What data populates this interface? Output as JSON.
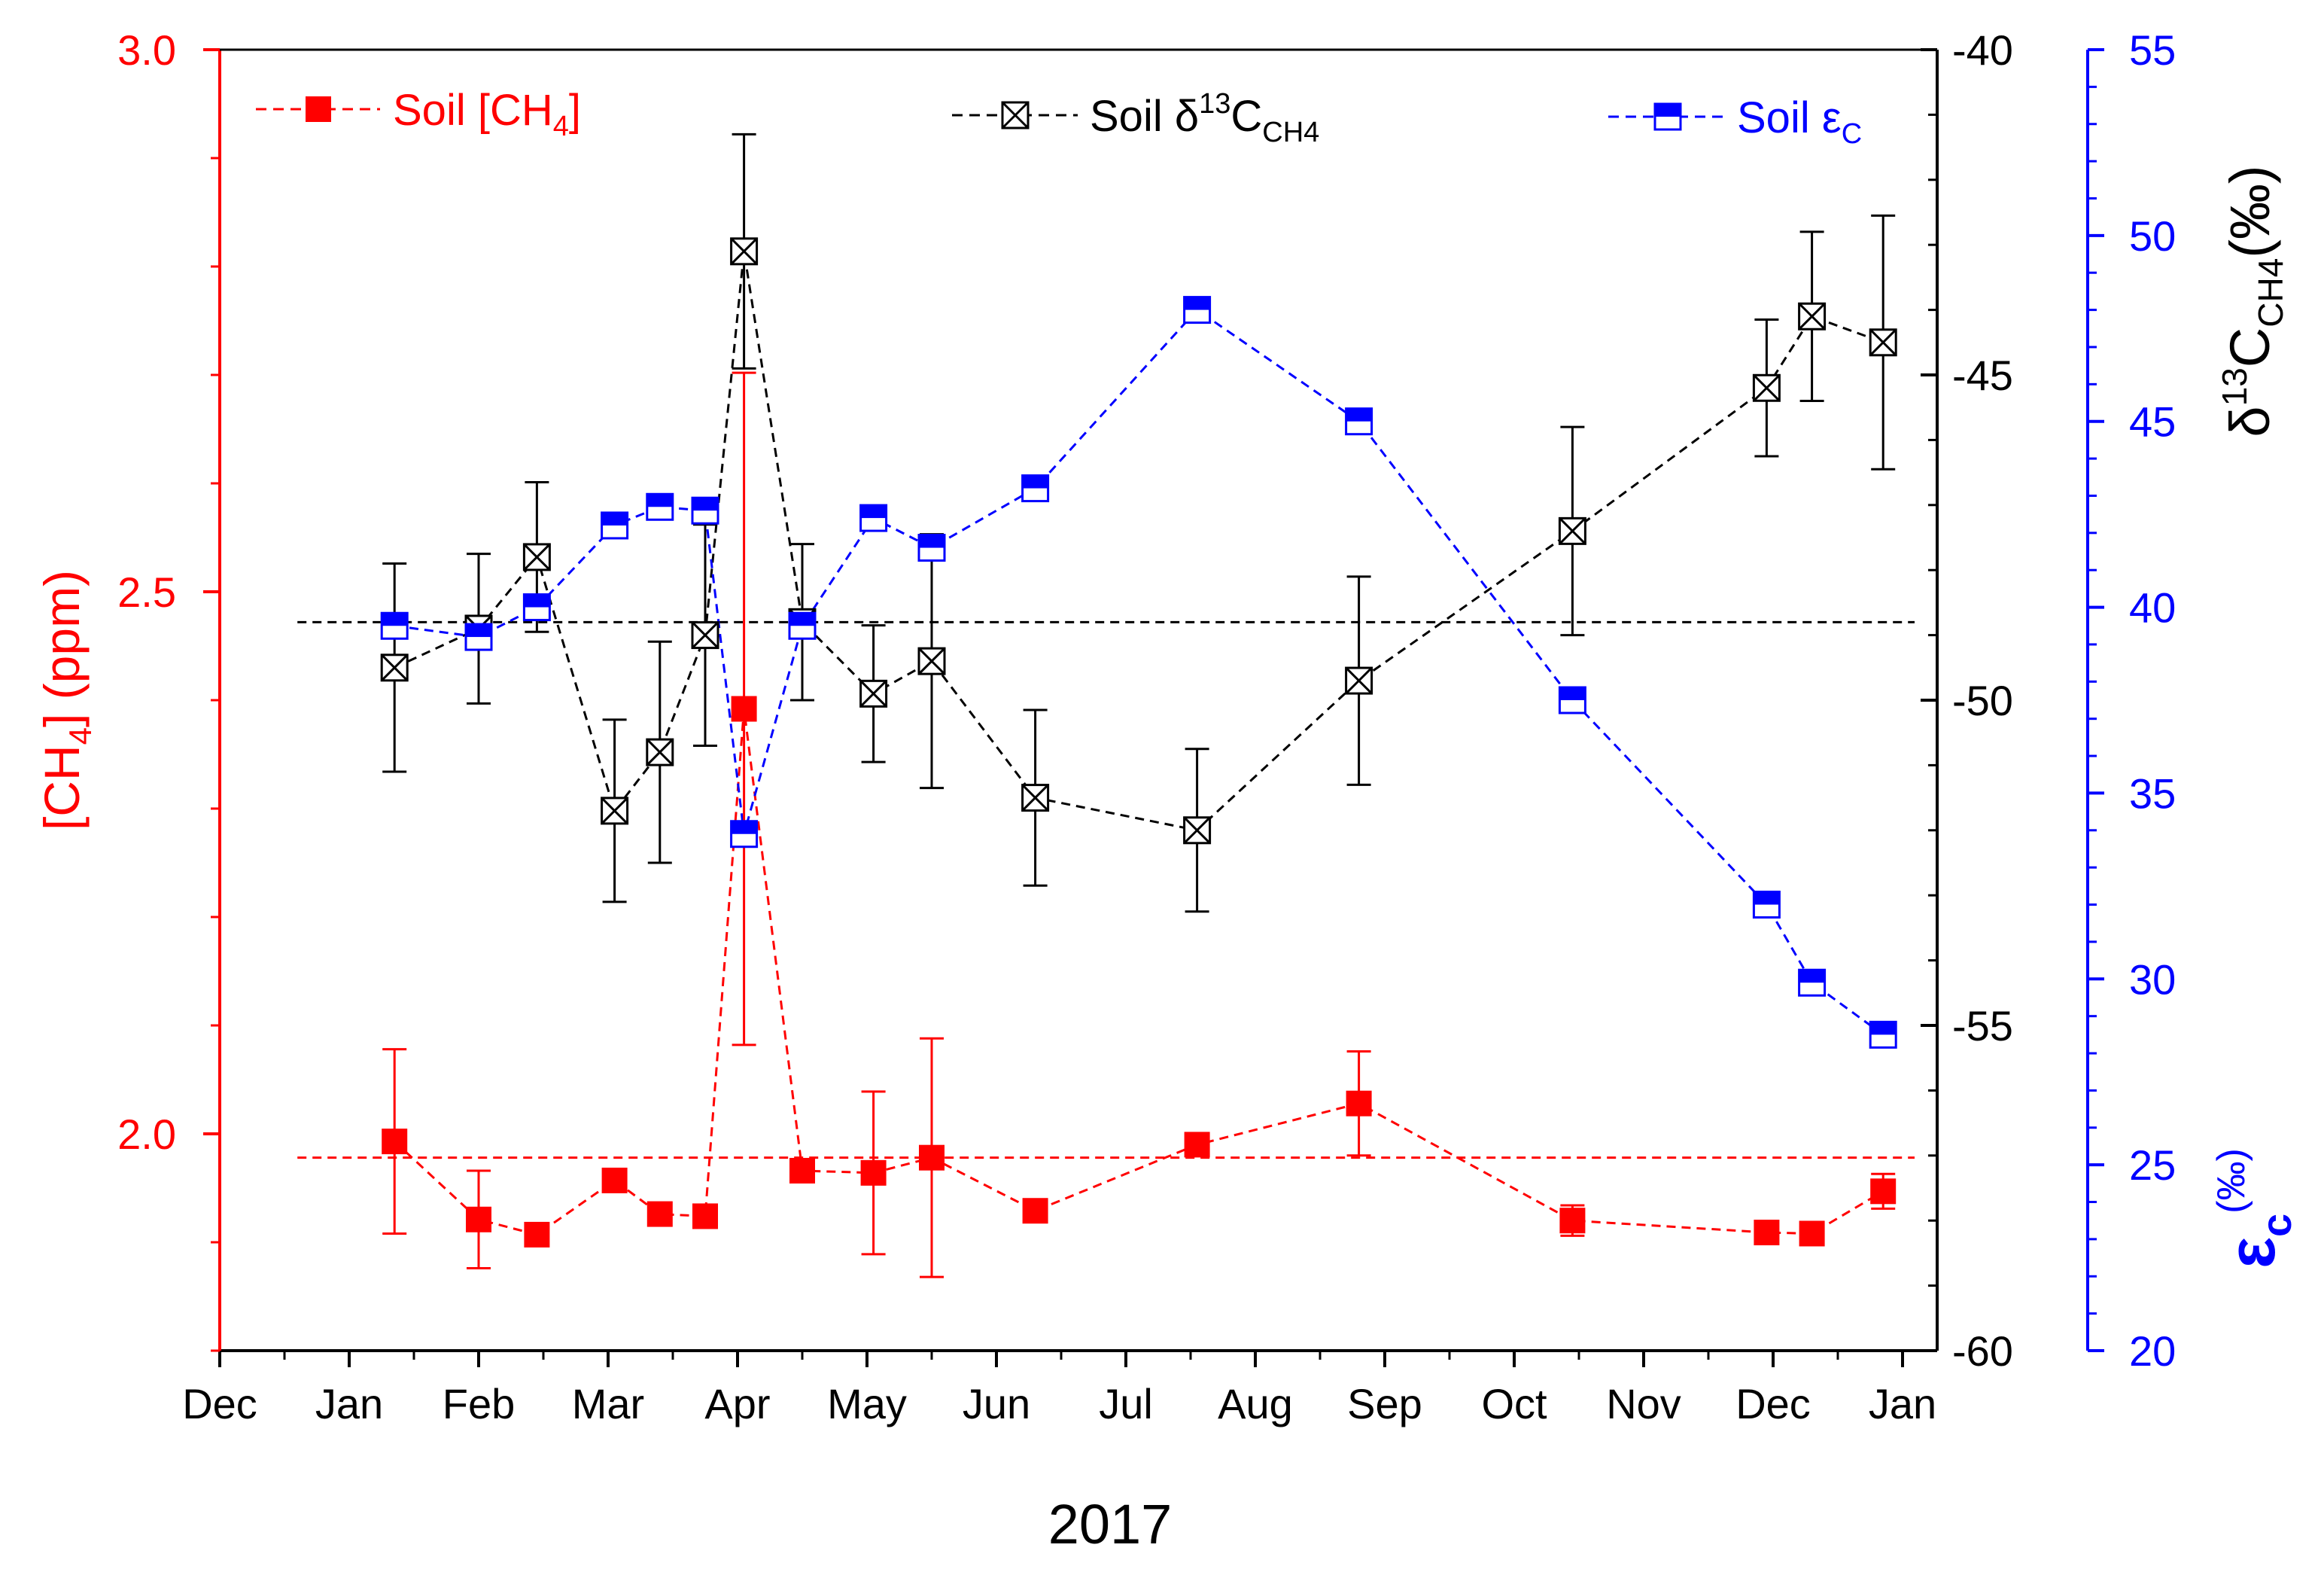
{
  "colors": {
    "ch4": "#ff0000",
    "d13c": "#000000",
    "eps": "#0000ff"
  },
  "chart_data": {
    "type": "scatter",
    "xlabel": "2017",
    "x_tick_labels": [
      "Dec",
      "Jan",
      "Feb",
      "Mar",
      "Apr",
      "May",
      "Jun",
      "Jul",
      "Aug",
      "Sep",
      "Oct",
      "Nov",
      "Dec",
      "Jan"
    ],
    "x_unit": "month index (0 = Dec 2016 tick)",
    "x_range": [
      0,
      13.5
    ],
    "axes": {
      "left": {
        "label": "[CH4] (ppm)",
        "label_main": "[CH",
        "label_sub": "4",
        "label_tail": "] (ppm)",
        "range": [
          1.8,
          3.0
        ],
        "ticks": [
          2.0,
          2.5,
          3.0
        ],
        "tick_labels": [
          "2.0",
          "2.5",
          "3.0"
        ]
      },
      "right1": {
        "label": "δ13CCH4(‰)",
        "label_main": "δ",
        "label_sup": "13",
        "label_mid": "C",
        "label_sub": "CH4",
        "label_tail": "(‰)",
        "range": [
          -60,
          -40
        ],
        "ticks": [
          -60,
          -55,
          -50,
          -45,
          -40
        ],
        "tick_labels": [
          "-60",
          "-55",
          "-50",
          "-45",
          "-40"
        ]
      },
      "right2": {
        "label": "εC(‰)",
        "label_main": "ε",
        "label_sub": "c",
        "label_sup": "(‰)",
        "range": [
          20,
          55
        ],
        "ticks": [
          20,
          25,
          30,
          35,
          40,
          45,
          50,
          55
        ],
        "tick_labels": [
          "20",
          "25",
          "30",
          "35",
          "40",
          "45",
          "50",
          "55"
        ]
      }
    },
    "legend": {
      "ch4": {
        "text": "Soil [CH",
        "sub": "4",
        "tail": "]"
      },
      "d13c": {
        "text": "Soil δ",
        "sup": "13",
        "mid": "C",
        "sub": "CH4"
      },
      "eps": {
        "text": "Soil ε",
        "sub": "C"
      }
    },
    "series": [
      {
        "name": "Soil [CH4]",
        "axis": "left",
        "marker": "filled-square",
        "reference_line": 1.978,
        "points": [
          {
            "x": 1.35,
            "y": 1.993,
            "err": 0.085
          },
          {
            "x": 2.0,
            "y": 1.921,
            "err": 0.045
          },
          {
            "x": 2.45,
            "y": 1.907,
            "err": 0
          },
          {
            "x": 3.05,
            "y": 1.957,
            "err": 0
          },
          {
            "x": 3.4,
            "y": 1.926,
            "err": 0
          },
          {
            "x": 3.75,
            "y": 1.924,
            "err": 0
          },
          {
            "x": 4.05,
            "y": 2.392,
            "err": 0.31
          },
          {
            "x": 4.5,
            "y": 1.966,
            "err": 0.01
          },
          {
            "x": 5.05,
            "y": 1.964,
            "err": 0.075
          },
          {
            "x": 5.5,
            "y": 1.978,
            "err": 0.11
          },
          {
            "x": 6.3,
            "y": 1.929,
            "err": 0
          },
          {
            "x": 7.55,
            "y": 1.99,
            "err": 0
          },
          {
            "x": 8.8,
            "y": 2.028,
            "err": 0.048
          },
          {
            "x": 10.45,
            "y": 1.92,
            "err": 0.014
          },
          {
            "x": 11.95,
            "y": 1.909,
            "err": 0
          },
          {
            "x": 12.3,
            "y": 1.908,
            "err": 0
          },
          {
            "x": 12.85,
            "y": 1.947,
            "err": 0.016
          }
        ]
      },
      {
        "name": "Soil δ13CCH4",
        "axis": "right1",
        "marker": "crossed-square",
        "reference_line": -48.8,
        "points": [
          {
            "x": 1.35,
            "y": -49.5,
            "err": 1.6
          },
          {
            "x": 2.0,
            "y": -48.9,
            "err": 1.15
          },
          {
            "x": 2.45,
            "y": -47.8,
            "err": 1.15
          },
          {
            "x": 3.05,
            "y": -51.7,
            "err": 1.4
          },
          {
            "x": 3.4,
            "y": -50.8,
            "err": 1.7
          },
          {
            "x": 3.75,
            "y": -49.0,
            "err": 1.7
          },
          {
            "x": 4.05,
            "y": -43.1,
            "err": 1.8
          },
          {
            "x": 4.5,
            "y": -48.8,
            "err": 1.2
          },
          {
            "x": 5.05,
            "y": -49.9,
            "err": 1.05
          },
          {
            "x": 5.5,
            "y": -49.4,
            "err": 1.95
          },
          {
            "x": 6.3,
            "y": -51.5,
            "err": 1.35
          },
          {
            "x": 7.55,
            "y": -52.0,
            "err": 1.25
          },
          {
            "x": 8.8,
            "y": -49.7,
            "err": 1.6
          },
          {
            "x": 10.45,
            "y": -47.4,
            "err": 1.6
          },
          {
            "x": 11.95,
            "y": -45.2,
            "err": 1.05
          },
          {
            "x": 12.3,
            "y": -44.1,
            "err": 1.3
          },
          {
            "x": 12.85,
            "y": -44.5,
            "err": 1.95
          }
        ]
      },
      {
        "name": "Soil εC",
        "axis": "right2",
        "marker": "half-filled-square",
        "points": [
          {
            "x": 1.35,
            "y": 39.5
          },
          {
            "x": 2.0,
            "y": 39.2
          },
          {
            "x": 2.45,
            "y": 40.0
          },
          {
            "x": 3.05,
            "y": 42.2
          },
          {
            "x": 3.4,
            "y": 42.7
          },
          {
            "x": 3.75,
            "y": 42.6
          },
          {
            "x": 4.05,
            "y": 33.9
          },
          {
            "x": 4.5,
            "y": 39.5
          },
          {
            "x": 5.05,
            "y": 42.4
          },
          {
            "x": 5.5,
            "y": 41.6
          },
          {
            "x": 6.3,
            "y": 43.2
          },
          {
            "x": 7.55,
            "y": 48.0
          },
          {
            "x": 8.8,
            "y": 45.0
          },
          {
            "x": 10.45,
            "y": 37.5
          },
          {
            "x": 11.95,
            "y": 32.0
          },
          {
            "x": 12.3,
            "y": 29.9
          },
          {
            "x": 12.85,
            "y": 28.5
          }
        ]
      }
    ]
  }
}
